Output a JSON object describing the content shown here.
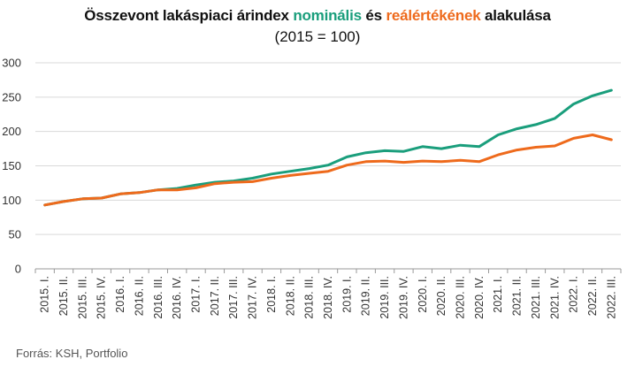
{
  "title": {
    "part1": "Összevont lakáspiaci árindex ",
    "nominal": "nominális",
    "part2": " és ",
    "real": "reálértékének",
    "part3": " alakulása"
  },
  "subtitle": "(2015 = 100)",
  "source": "Forrás: KSH, Portfolio",
  "colors": {
    "nominal": "#1a9e7c",
    "real": "#ee6a1c",
    "grid": "#d9d9d9",
    "axis": "#999999"
  },
  "chart_data": {
    "type": "line",
    "categories": [
      "2015. I.",
      "2015. II.",
      "2015. III.",
      "2015. IV.",
      "2016. I.",
      "2016. II.",
      "2016. III.",
      "2016. IV.",
      "2017. I.",
      "2017. II.",
      "2017. III.",
      "2017. IV.",
      "2018. I.",
      "2018. II.",
      "2018. III.",
      "2018. IV.",
      "2019. I.",
      "2019. II.",
      "2019. III.",
      "2019. IV.",
      "2020. I.",
      "2020. II.",
      "2020. III.",
      "2020. IV.",
      "2021. I.",
      "2021. II.",
      "2021. III.",
      "2021. IV.",
      "2022. I.",
      "2022. II.",
      "2022. III."
    ],
    "series": [
      {
        "key": "nominal",
        "values": [
          93,
          98,
          102,
          103,
          109,
          111,
          115,
          117,
          122,
          126,
          128,
          132,
          138,
          142,
          146,
          151,
          163,
          169,
          172,
          171,
          178,
          175,
          180,
          178,
          195,
          204,
          210,
          219,
          240,
          252,
          260
        ]
      },
      {
        "key": "real",
        "values": [
          93,
          98,
          102,
          103,
          109,
          111,
          115,
          115,
          118,
          124,
          126,
          127,
          132,
          136,
          139,
          142,
          151,
          156,
          157,
          155,
          157,
          156,
          158,
          156,
          166,
          173,
          177,
          179,
          190,
          195,
          188
        ]
      }
    ],
    "yticks": [
      0,
      50,
      100,
      150,
      200,
      250,
      300
    ],
    "ylim": [
      0,
      300
    ],
    "grid": true,
    "legend": "none"
  }
}
